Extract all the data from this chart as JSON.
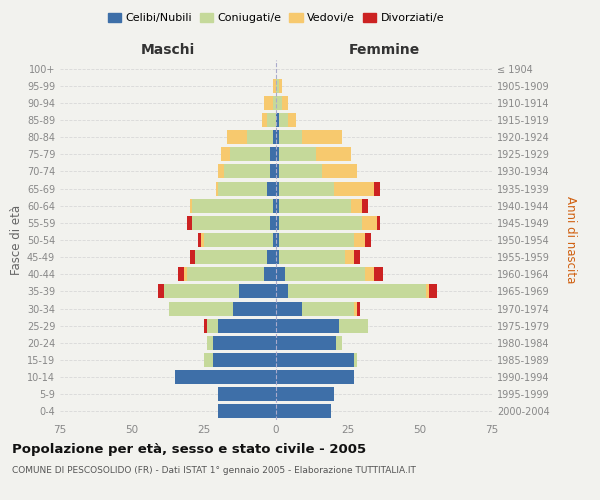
{
  "age_groups": [
    "0-4",
    "5-9",
    "10-14",
    "15-19",
    "20-24",
    "25-29",
    "30-34",
    "35-39",
    "40-44",
    "45-49",
    "50-54",
    "55-59",
    "60-64",
    "65-69",
    "70-74",
    "75-79",
    "80-84",
    "85-89",
    "90-94",
    "95-99",
    "100+"
  ],
  "birth_years": [
    "2000-2004",
    "1995-1999",
    "1990-1994",
    "1985-1989",
    "1980-1984",
    "1975-1979",
    "1970-1974",
    "1965-1969",
    "1960-1964",
    "1955-1959",
    "1950-1954",
    "1945-1949",
    "1940-1944",
    "1935-1939",
    "1930-1934",
    "1925-1929",
    "1920-1924",
    "1915-1919",
    "1910-1914",
    "1905-1909",
    "≤ 1904"
  ],
  "maschi": {
    "celibi": [
      20,
      20,
      35,
      22,
      22,
      20,
      15,
      13,
      4,
      3,
      1,
      2,
      1,
      3,
      2,
      2,
      1,
      0,
      0,
      0,
      0
    ],
    "coniugati": [
      0,
      0,
      0,
      3,
      2,
      4,
      22,
      26,
      27,
      25,
      24,
      27,
      28,
      17,
      16,
      14,
      9,
      3,
      1,
      0,
      0
    ],
    "vedovi": [
      0,
      0,
      0,
      0,
      0,
      0,
      0,
      0,
      1,
      0,
      1,
      0,
      1,
      1,
      2,
      3,
      7,
      2,
      3,
      1,
      0
    ],
    "divorziati": [
      0,
      0,
      0,
      0,
      0,
      1,
      0,
      2,
      2,
      2,
      1,
      2,
      0,
      0,
      0,
      0,
      0,
      0,
      0,
      0,
      0
    ]
  },
  "femmine": {
    "nubili": [
      19,
      20,
      27,
      27,
      21,
      22,
      9,
      4,
      3,
      1,
      1,
      1,
      1,
      1,
      1,
      1,
      1,
      1,
      0,
      0,
      0
    ],
    "coniugate": [
      0,
      0,
      0,
      1,
      2,
      10,
      18,
      48,
      28,
      23,
      26,
      29,
      25,
      19,
      15,
      13,
      8,
      3,
      2,
      1,
      0
    ],
    "vedove": [
      0,
      0,
      0,
      0,
      0,
      0,
      1,
      1,
      3,
      3,
      4,
      5,
      4,
      14,
      12,
      12,
      14,
      3,
      2,
      1,
      0
    ],
    "divorziate": [
      0,
      0,
      0,
      0,
      0,
      0,
      1,
      3,
      3,
      2,
      2,
      1,
      2,
      2,
      0,
      0,
      0,
      0,
      0,
      0,
      0
    ]
  },
  "colors": {
    "celibi": "#3e6fa8",
    "coniugati": "#c5d99a",
    "vedovi": "#f7c96e",
    "divorziati": "#cc2222"
  },
  "xlim": 75,
  "title": "Popolazione per età, sesso e stato civile - 2005",
  "subtitle": "COMUNE DI PESCOSOLIDO (FR) - Dati ISTAT 1° gennaio 2005 - Elaborazione TUTTITALIA.IT",
  "ylabel_left": "Fasce di età",
  "ylabel_right": "Anni di nascita",
  "xlabel_left": "Maschi",
  "xlabel_right": "Femmine",
  "legend_labels": [
    "Celibi/Nubili",
    "Coniugati/e",
    "Vedovi/e",
    "Divorziati/e"
  ],
  "background_color": "#f2f2ee",
  "grid_color": "#d8d8d8",
  "tick_color": "#888888"
}
